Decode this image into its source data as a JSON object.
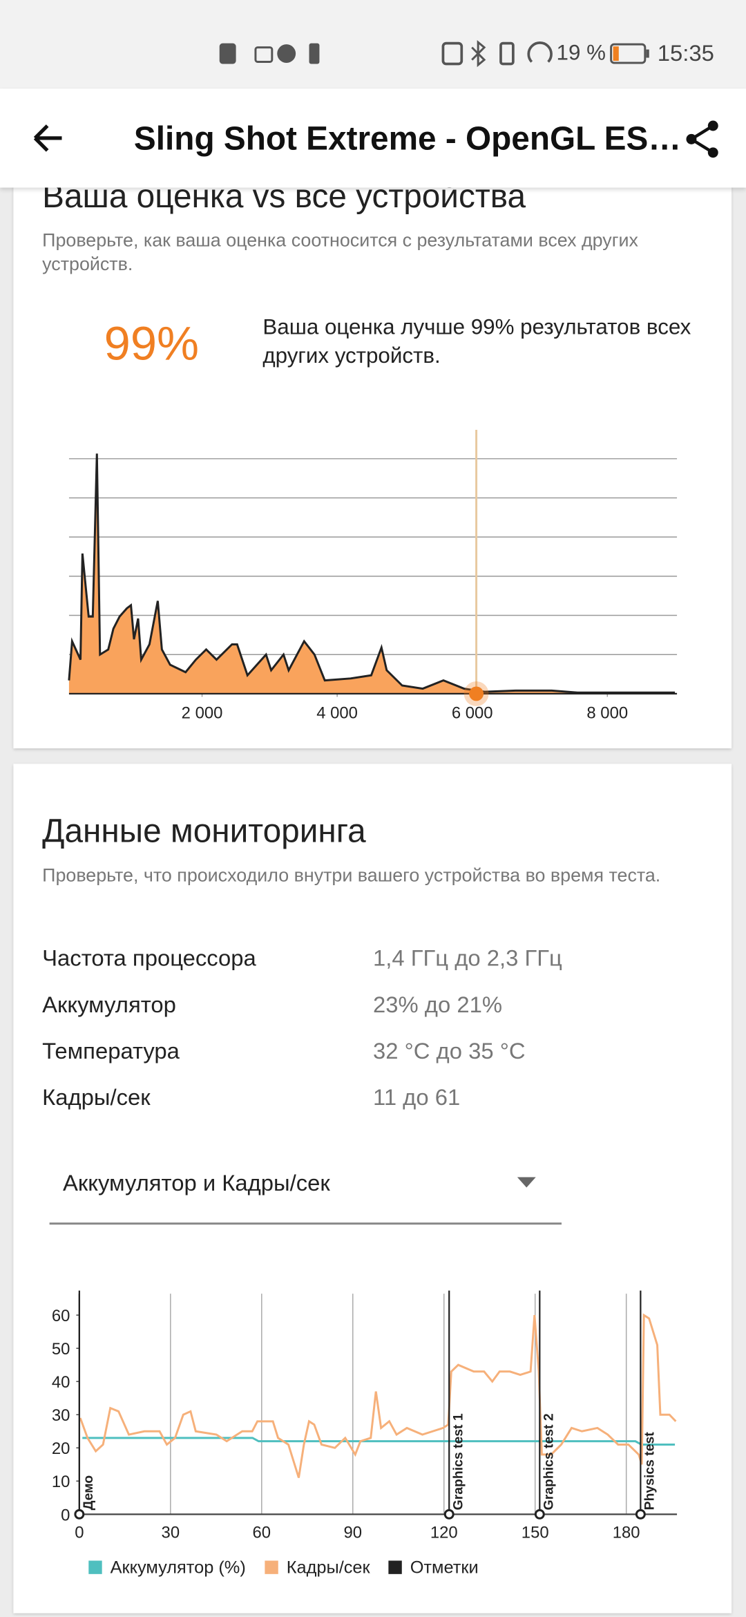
{
  "status_bar": {
    "battery": {
      "value": 19,
      "label": "19 %"
    },
    "time": "15:35"
  },
  "app_bar": {
    "title": "Sling Shot Extreme - OpenGL ES…"
  },
  "score_card": {
    "title": "Ваша оценка vs все устройства",
    "subtitle": "Проверьте, как ваша оценка соотносится с результатами всех других устройств.",
    "percent": "99%",
    "description": "Ваша оценка лучше 99% результатов всех других устройств."
  },
  "score_chart": {
    "type": "area",
    "color": "#f9a35c",
    "line_color": "#222222",
    "marker_color": "#f07f22",
    "x": [
      30,
      76,
      200,
      229,
      321,
      382,
      443,
      489,
      611,
      687,
      779,
      886,
      947,
      992,
      1053,
      1099,
      1221,
      1344,
      1405,
      1527,
      1756,
      1908,
      2061,
      2214,
      2443,
      2519,
      2672,
      2947,
      3023,
      3206,
      3282,
      3511,
      3664,
      3817,
      4198,
      4504,
      4656,
      4733,
      4962,
      5267,
      5573,
      5878,
      6183,
      6641,
      7176,
      7557,
      9000
    ],
    "values": [
      0.34,
      1.34,
      0.87,
      3.58,
      1.97,
      1.97,
      6.13,
      1.0,
      1.13,
      1.66,
      1.97,
      2.18,
      2.26,
      1.39,
      1.92,
      0.87,
      1.26,
      2.37,
      1.13,
      0.74,
      0.55,
      0.87,
      1.13,
      0.87,
      1.26,
      1.26,
      0.47,
      1.0,
      0.6,
      1.0,
      0.6,
      1.34,
      1.0,
      0.34,
      0.39,
      0.47,
      1.18,
      0.6,
      0.21,
      0.13,
      0.34,
      0.13,
      0.05,
      0.08,
      0.08,
      0.03,
      0.03
    ],
    "score_marker": 6060,
    "xlim": [
      0,
      9000
    ],
    "ylim": [
      0,
      6
    ],
    "xticks": [
      {
        "value": 2000,
        "label": "2 000"
      },
      {
        "value": 4000,
        "label": "4 000"
      },
      {
        "value": 6000,
        "label": "6 000"
      },
      {
        "value": 8000,
        "label": "8 000"
      }
    ],
    "yticks": [
      0,
      1,
      2,
      3,
      4,
      5,
      6
    ],
    "grid": true
  },
  "monitoring_card": {
    "title": "Данные мониторинга",
    "subtitle": "Проверьте, что происходило внутри вашего устройства во время теста.",
    "rows": [
      [
        "Частота процессора",
        "1,4 ГГц до 2,3 ГГц"
      ],
      [
        "Аккумулятор",
        "23% до 21%"
      ],
      [
        "Температура",
        "32 °C до 35 °C"
      ],
      [
        "Кадры/сек",
        "11 до 61"
      ]
    ],
    "dropdown": "Аккумулятор и Кадры/сек"
  },
  "monitoring_chart": {
    "type": "line",
    "series": [
      {
        "name": "Аккумулятор (%)",
        "color": "#4fbfbf",
        "x": [
          1,
          57,
          59,
          183,
          185,
          196
        ],
        "values": [
          23,
          23,
          22,
          22,
          21,
          21
        ]
      },
      {
        "name": "Кадры/сек",
        "color": "#f6b07a",
        "x": [
          0.3,
          2.7,
          5.4,
          7.8,
          10.2,
          12.9,
          16.3,
          21.4,
          26.4,
          28.8,
          31.5,
          34.2,
          36.6,
          38.3,
          45.1,
          48.5,
          53.6,
          56.9,
          58.6,
          61.4,
          63.7,
          65.4,
          68.8,
          70.5,
          72.2,
          73.9,
          75.6,
          77.3,
          79.7,
          84.1,
          87.5,
          90.8,
          92.5,
          95.9,
          97.6,
          99.3,
          102,
          104.4,
          107.8,
          112.9,
          116.3,
          119.7,
          121.4,
          122.4,
          124.7,
          129.8,
          133.2,
          135.9,
          138.3,
          141.7,
          145.1,
          148.5,
          149.8,
          151.2,
          152.2,
          155.3,
          158.6,
          162,
          165.4,
          170.5,
          173.9,
          177.3,
          180.7,
          184.1,
          185.1,
          185.8,
          187.5,
          190.2,
          191.2,
          194.2,
          196.3
        ],
        "values": [
          29,
          23,
          19,
          21,
          32,
          31,
          24,
          25,
          25,
          21,
          23,
          30,
          31,
          25,
          24,
          22,
          25,
          25,
          28,
          28,
          28,
          23,
          21,
          16,
          11,
          21,
          28,
          27,
          21,
          20,
          23,
          18,
          22,
          23,
          37,
          26,
          28,
          24,
          26,
          24,
          25,
          26,
          27,
          43,
          45,
          43,
          43,
          40,
          43,
          43,
          42,
          43,
          60,
          43,
          18,
          18,
          21,
          26,
          25,
          26,
          24,
          21,
          21,
          18,
          15,
          60,
          59,
          51,
          30,
          30,
          28
        ]
      }
    ],
    "events": {
      "name": "Отметки",
      "color": "#222222",
      "items": [
        {
          "label": "Демо",
          "x": 0
        },
        {
          "label": "Graphics test 1",
          "x": 121.7
        },
        {
          "label": "Graphics test 2",
          "x": 151.5
        },
        {
          "label": "Physics test",
          "x": 184.7
        }
      ]
    },
    "xlim": [
      0,
      196
    ],
    "ylim": [
      0,
      66
    ],
    "xticks": [
      0,
      30,
      60,
      90,
      120,
      150,
      180
    ],
    "yticks": [
      0,
      10,
      20,
      30,
      40,
      50,
      60
    ],
    "grid": true
  }
}
